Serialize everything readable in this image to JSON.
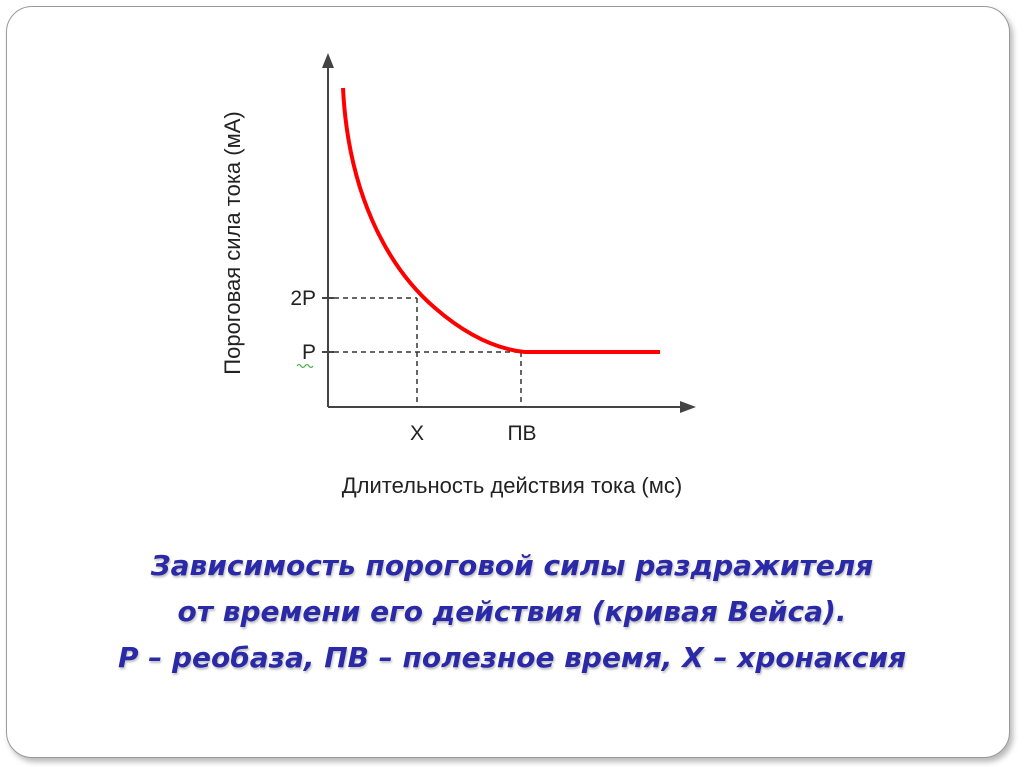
{
  "diagram": {
    "y_axis_label": "Пороговая сила тока (мА)",
    "x_axis_label": "Длительность действия тока (мс)",
    "y_ticks": [
      "2P",
      "P"
    ],
    "x_ticks": [
      "X",
      "ПВ"
    ],
    "curve_color": "#ff0000",
    "axis_color": "#444444",
    "guide_color": "#333333"
  },
  "caption": {
    "line1": "Зависимость пороговой силы раздражителя",
    "line2": "от времени его действия (кривая Вейса).",
    "line3": "Р – реобаза, ПВ – полезное время, Х – хронаксия",
    "color": "#2a2aa8"
  }
}
